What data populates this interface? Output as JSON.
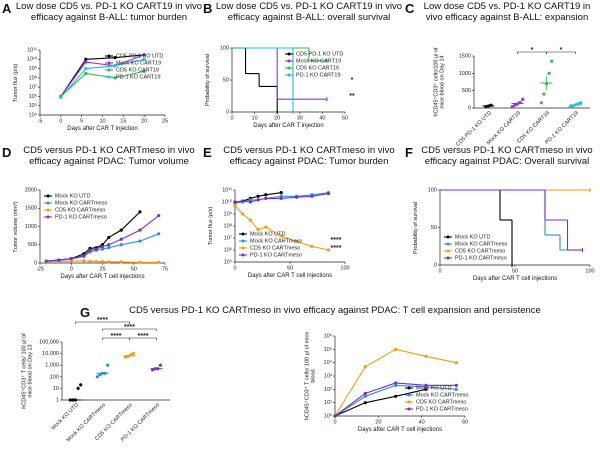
{
  "chart_data": [
    {
      "panel": "A",
      "type": "line",
      "title": "Low dose CD5 vs. PD-1 KO CART19 in vivo efficacy against B-ALL: tumor burden",
      "x_label": "Days after CAR T injection",
      "y_label": "Tumor flux (p/s)",
      "x": [
        0,
        6,
        13,
        20
      ],
      "xlim": [
        -5,
        25
      ],
      "xticks": [
        -5,
        0,
        5,
        10,
        15,
        20,
        25
      ],
      "ylim": [
        10000,
        100000000000
      ],
      "log_y": true,
      "yticks": [
        {
          "value": 10000,
          "label": "10⁴"
        },
        {
          "value": 100000,
          "label": "10⁵"
        },
        {
          "value": 1000000,
          "label": "10⁶"
        },
        {
          "value": 10000000,
          "label": "10⁷"
        },
        {
          "value": 100000000,
          "label": "10⁸"
        },
        {
          "value": 1000000000,
          "label": "10⁹"
        },
        {
          "value": 10000000000,
          "label": "10¹⁰"
        },
        {
          "value": 100000000000,
          "label": "10¹¹"
        }
      ],
      "legend": "upper right",
      "series": [
        {
          "name": "CD5 PD-1 KO UTD",
          "color": "#000000",
          "values": [
            1000000,
            10000000000,
            15000000000,
            30000000000
          ]
        },
        {
          "name": "Mock KO CART19",
          "color": "#9b30d9",
          "values": [
            1000000,
            5000000000,
            2000000000,
            30000000000
          ]
        },
        {
          "name": "CD5 KO CART19",
          "color": "#3cb44b",
          "values": [
            1000000,
            300000000,
            100000000,
            500000000
          ]
        },
        {
          "name": "PD-1 KO CART19",
          "color": "#17c4d8",
          "values": [
            800000,
            1000000000,
            2000000000,
            10000000000
          ]
        }
      ]
    },
    {
      "panel": "B",
      "type": "survival",
      "title": "Low dose CD5 vs. PD-1 KO CART19 in vivo efficacy against B-ALL: overall survival",
      "x_label": "Days after CAR T injection",
      "y_label": "Probability of survival",
      "xlim": [
        0,
        50
      ],
      "xticks": [
        0,
        10,
        20,
        30,
        40,
        50
      ],
      "ylim": [
        0,
        100
      ],
      "yticks": [
        0,
        50,
        100
      ],
      "legend": "upper right",
      "annotations": [
        "*",
        "**"
      ],
      "series": [
        {
          "name": "CD5 PD-1 KO UTD",
          "color": "#000000",
          "x": [
            0,
            6,
            12,
            20
          ],
          "values": [
            100,
            60,
            40,
            0
          ]
        },
        {
          "name": "Mock KO CART19",
          "color": "#9b30d9",
          "x": [
            0,
            20,
            42
          ],
          "values": [
            100,
            20,
            20
          ]
        },
        {
          "name": "CD5 KO CART19",
          "color": "#3cb44b",
          "x": [
            0,
            34,
            42
          ],
          "values": [
            100,
            80,
            80
          ]
        },
        {
          "name": "PD-1 KO CART19",
          "color": "#17c4d8",
          "x": [
            0,
            27
          ],
          "values": [
            100,
            0
          ]
        }
      ]
    },
    {
      "panel": "C",
      "type": "dot",
      "title": "Low dose CD5 vs. PD-1 KO CART19 in vivo efficacy against B-ALL: expansion",
      "y_label": "hCD45⁺CD3⁺ cells/100 μl of mice blood on Day 14",
      "categories": [
        "CD5 PD-1 KO UTD",
        "Mock KO CART19",
        "CD5 KO CART19",
        "PD-1 KO CART19"
      ],
      "colors": [
        "#000000",
        "#9b30d9",
        "#3cb44b",
        "#17c4d8"
      ],
      "values": [
        [
          40,
          60,
          80
        ],
        [
          40,
          80,
          120,
          160,
          250
        ],
        [
          150,
          400,
          700,
          1000,
          1350
        ],
        [
          40,
          60,
          90,
          120,
          150
        ]
      ],
      "means": [
        60,
        130,
        720,
        90
      ],
      "sems": [
        10,
        35,
        210,
        20
      ],
      "ylim": [
        0,
        1500
      ],
      "yticks": [
        0,
        500,
        1000,
        1500
      ],
      "annotations": [
        "*",
        "*"
      ]
    },
    {
      "panel": "D",
      "type": "line",
      "title": "CD5 versus PD-1 KO CARTmeso in vivo efficacy against PDAC: Tumor volume",
      "x_label": "Days after CAR T cell injections",
      "y_label": "Tumor volume (mm³)",
      "x": [
        -20,
        -10,
        0,
        10,
        15,
        20,
        25,
        30,
        40,
        55,
        70
      ],
      "xlim": [
        -25,
        75
      ],
      "xticks": [
        -25,
        0,
        25,
        50,
        75
      ],
      "ylim": [
        0,
        2000
      ],
      "yticks": [
        0,
        500,
        1000,
        1500,
        2000
      ],
      "legend": "upper left",
      "series": [
        {
          "name": "Mock KO UTD",
          "color": "#000000",
          "values": [
            50,
            80,
            120,
            250,
            400,
            420,
            500,
            700,
            900,
            1400,
            null
          ]
        },
        {
          "name": "Mock KO CARTmeso",
          "color": "#2b8fe0",
          "values": [
            50,
            70,
            110,
            180,
            300,
            350,
            380,
            420,
            500,
            600,
            800
          ]
        },
        {
          "name": "CD5 KO CARTmeso",
          "color": "#f39c12",
          "values": [
            40,
            40,
            50,
            60,
            50,
            40,
            40,
            30,
            30,
            20,
            20
          ]
        },
        {
          "name": "PD-1 KO CARTmeso",
          "color": "#7b2fbf",
          "values": [
            50,
            80,
            120,
            200,
            350,
            380,
            450,
            500,
            650,
            900,
            1300
          ]
        }
      ]
    },
    {
      "panel": "E",
      "type": "line",
      "title": "CD5 versus PD-1 KO CARTmeso in vivo efficacy against PDAC: Tumor burden",
      "x_label": "Days after CAR T cell injections",
      "y_label": "Tumor flux (p/s)",
      "x": [
        0,
        7,
        14,
        21,
        28,
        42,
        56,
        70,
        85
      ],
      "xlim": [
        0,
        100
      ],
      "xticks": [
        0,
        50,
        100
      ],
      "ylim": [
        100000,
        100000000000
      ],
      "log_y": true,
      "yticks": [
        {
          "value": 100000,
          "label": "10⁵"
        },
        {
          "value": 1000000,
          "label": "10⁶"
        },
        {
          "value": 10000000,
          "label": "10⁷"
        },
        {
          "value": 100000000,
          "label": "10⁸"
        },
        {
          "value": 1000000000,
          "label": "10⁹"
        },
        {
          "value": 10000000000,
          "label": "10¹⁰"
        },
        {
          "value": 100000000000,
          "label": "10¹¹"
        }
      ],
      "legend": "lower left",
      "annotations": [
        "****",
        "****"
      ],
      "series": [
        {
          "name": "Mock KO UTD",
          "color": "#000000",
          "values": [
            10000000000,
            12000000000,
            20000000000,
            30000000000,
            40000000000,
            60000000000,
            null,
            null,
            null
          ]
        },
        {
          "name": "Mock KO CARTmeso",
          "color": "#2b8fe0",
          "values": [
            8000000000,
            10000000000,
            15000000000,
            15000000000,
            20000000000,
            30000000000,
            30000000000,
            40000000000,
            60000000000
          ]
        },
        {
          "name": "CD5 KO CARTmeso",
          "color": "#f39c12",
          "values": [
            5000000000,
            1000000000,
            300000000,
            50000000,
            80000000,
            15000000,
            5000000,
            2000000,
            1000000
          ]
        },
        {
          "name": "PD-1 KO CARTmeso",
          "color": "#7b2fbf",
          "values": [
            10000000000,
            12000000000,
            10000000000,
            15000000000,
            20000000000,
            20000000000,
            25000000000,
            30000000000,
            50000000000
          ]
        }
      ]
    },
    {
      "panel": "F",
      "type": "survival",
      "title": "CD5 versus PD-1 KO CARTmeso in vivo efficacy against PDAC: Overall survival",
      "x_label": "Days after CAR T cell injections",
      "y_label": "Probability of survival",
      "xlim": [
        0,
        100
      ],
      "xticks": [
        0,
        50,
        100
      ],
      "ylim": [
        0,
        100
      ],
      "yticks": [
        0,
        50,
        100
      ],
      "legend": "lower left",
      "series": [
        {
          "name": "Mock KO UTD",
          "color": "#000000",
          "x": [
            0,
            40,
            48
          ],
          "values": [
            100,
            60,
            0
          ]
        },
        {
          "name": "Mock KO CARTmeso",
          "color": "#2b8fe0",
          "x": [
            0,
            70,
            80,
            95
          ],
          "values": [
            100,
            40,
            20,
            20
          ]
        },
        {
          "name": "CD5 KO CARTmeso",
          "color": "#f39c12",
          "x": [
            0,
            100
          ],
          "values": [
            100,
            100
          ]
        },
        {
          "name": "PD-1 KO CARTmeso",
          "color": "#7b2fbf",
          "x": [
            0,
            70,
            85,
            95
          ],
          "values": [
            100,
            60,
            20,
            20
          ]
        }
      ]
    },
    {
      "panel": "G",
      "type": "dot",
      "title": "CD5 versus PD-1 KO CARTmeso in vivo efficacy against PDAC: T cell expansion and persistence",
      "y_label": "hCD45⁺CD3⁺ T cells/ 100 μl of mice blood on Day 13",
      "categories": [
        "Mock KO UTD",
        "Mock KO CARTmeso",
        "CD5 KO CARTmeso",
        "PD-1 KO CARTmeso"
      ],
      "colors": [
        "#000000",
        "#2b8fe0",
        "#f39c12",
        "#7b2fbf"
      ],
      "values": [
        [
          1,
          1,
          1,
          10,
          20
        ],
        [
          100,
          150,
          200,
          200,
          1000
        ],
        [
          5000,
          6000,
          8000,
          10000
        ],
        [
          400,
          500,
          500,
          1000
        ]
      ],
      "means": [
        1,
        200,
        6500,
        500
      ],
      "ylim": [
        1,
        100000
      ],
      "log_y": true,
      "yticks": [
        1,
        10,
        100,
        {
          "value": 1000,
          "label": "1,000"
        },
        {
          "value": 10000,
          "label": "10,000"
        },
        {
          "value": 100000,
          "label": "100,000"
        }
      ],
      "annotations": [
        "****",
        "****",
        "****",
        "****"
      ]
    },
    {
      "type": "line",
      "x_label": "Days after CAR T cell injections",
      "y_label": "hCD45⁺CD3⁺ T cells/ 100 μl of mice blood",
      "x": [
        0,
        14,
        28,
        42,
        56
      ],
      "xlim": [
        0,
        60
      ],
      "xticks": [
        0,
        20,
        40,
        60
      ],
      "ylim": [
        1,
        1000000
      ],
      "log_y": true,
      "yticks": [
        {
          "value": 1,
          "label": "10⁰"
        },
        {
          "value": 10,
          "label": "10¹"
        },
        {
          "value": 100,
          "label": "10²"
        },
        {
          "value": 1000,
          "label": "10³"
        },
        {
          "value": 10000,
          "label": "10⁴"
        },
        {
          "value": 100000,
          "label": "10⁵"
        },
        {
          "value": 1000000,
          "label": "10⁶"
        }
      ],
      "legend": "lower right",
      "series": [
        {
          "name": "Mock KO UTD",
          "color": "#000000",
          "values": [
            1,
            10,
            30,
            100,
            null
          ]
        },
        {
          "name": "Mock KO CARTmeso",
          "color": "#2b8fe0",
          "values": [
            1,
            30,
            200,
            150,
            100
          ]
        },
        {
          "name": "CD5 KO CARTmeso",
          "color": "#f39c12",
          "values": [
            1,
            5000,
            100000,
            30000,
            10000
          ]
        },
        {
          "name": "PD-1 KO CARTmeso",
          "color": "#7b2fbf",
          "values": [
            1,
            50,
            300,
            200,
            200
          ]
        }
      ]
    }
  ]
}
